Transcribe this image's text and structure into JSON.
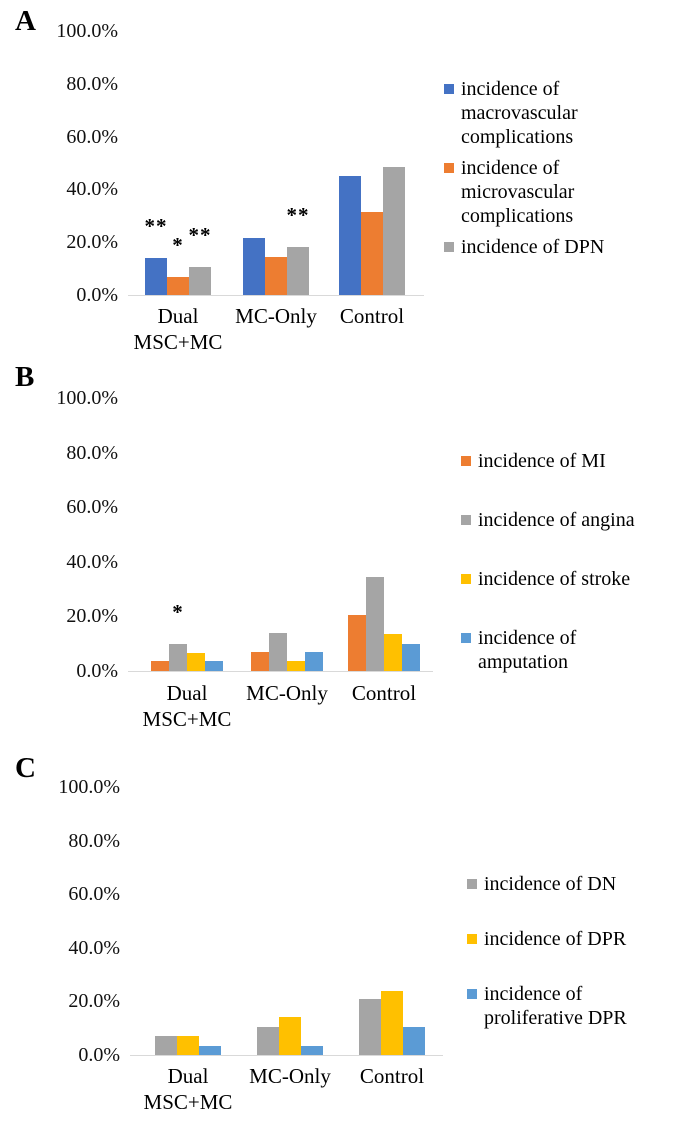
{
  "figure_title": "",
  "chart_data": [
    {
      "panel": "A",
      "type": "bar",
      "categories": [
        "Dual MSC+MC",
        "MC-Only",
        "Control"
      ],
      "y_tick_labels": [
        "100.0%",
        "80.0%",
        "60.0%",
        "40.0%",
        "20.0%",
        "0.0%"
      ],
      "ylim": [
        0,
        100
      ],
      "y_unit": "%",
      "grid": false,
      "legend_position": "right",
      "series": [
        {
          "name": "incidence of macrovascular complications",
          "color": "#4472C4",
          "values": [
            14,
            21.5,
            45
          ],
          "significance": [
            "**",
            "",
            ""
          ]
        },
        {
          "name": "incidence of microvascular complications",
          "color": "#ED7D31",
          "values": [
            7,
            14.5,
            31.5
          ],
          "significance": [
            "*",
            "",
            ""
          ]
        },
        {
          "name": "incidence of DPN",
          "color": "#A5A5A5",
          "values": [
            10.5,
            18,
            48.5
          ],
          "significance": [
            "**",
            "**",
            ""
          ]
        }
      ]
    },
    {
      "panel": "B",
      "type": "bar",
      "categories": [
        "Dual MSC+MC",
        "MC-Only",
        "Control"
      ],
      "y_tick_labels": [
        "100.0%",
        "80.0%",
        "60.0%",
        "40.0%",
        "20.0%",
        "0.0%"
      ],
      "ylim": [
        0,
        100
      ],
      "y_unit": "%",
      "grid": false,
      "legend_position": "right",
      "series": [
        {
          "name": "incidence of MI",
          "color": "#ED7D31",
          "values": [
            3.5,
            7,
            20.5
          ],
          "significance": [
            "",
            "",
            ""
          ]
        },
        {
          "name": "incidence of angina",
          "color": "#A5A5A5",
          "values": [
            10,
            14,
            34.5
          ],
          "significance": [
            "*",
            "",
            ""
          ]
        },
        {
          "name": "incidence of stroke",
          "color": "#FFC000",
          "values": [
            6.5,
            3.5,
            13.5
          ],
          "significance": [
            "",
            "",
            ""
          ]
        },
        {
          "name": "incidence of amputation",
          "color": "#5B9BD5",
          "values": [
            3.5,
            7,
            10
          ],
          "significance": [
            "",
            "",
            ""
          ]
        }
      ]
    },
    {
      "panel": "C",
      "type": "bar",
      "categories": [
        "Dual MSC+MC",
        "MC-Only",
        "Control"
      ],
      "y_tick_labels": [
        "100.0%",
        "80.0%",
        "60.0%",
        "40.0%",
        "20.0%",
        "0.0%"
      ],
      "ylim": [
        0,
        100
      ],
      "y_unit": "%",
      "grid": false,
      "legend_position": "right",
      "series": [
        {
          "name": "incidence of DN",
          "color": "#A5A5A5",
          "values": [
            7,
            10.5,
            21
          ],
          "significance": [
            "",
            "",
            ""
          ]
        },
        {
          "name": "incidence of DPR",
          "color": "#FFC000",
          "values": [
            7,
            14,
            24
          ],
          "significance": [
            "",
            "",
            ""
          ]
        },
        {
          "name": "incidence of proliferative DPR",
          "color": "#5B9BD5",
          "values": [
            3.5,
            3.5,
            10.5
          ],
          "significance": [
            "",
            "",
            ""
          ]
        }
      ]
    }
  ],
  "colors": {
    "blue": "#4472C4",
    "orange": "#ED7D31",
    "gray": "#A5A5A5",
    "yellow": "#FFC000",
    "light_blue": "#5B9BD5",
    "axis_line": "#D9D9D9",
    "background": "#FFFFFF"
  }
}
